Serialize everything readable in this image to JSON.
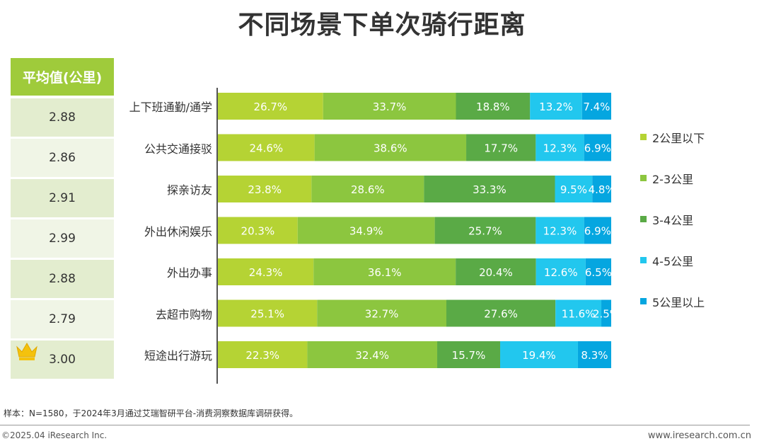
{
  "chart_data": {
    "type": "bar",
    "orientation": "horizontal",
    "stacked": true,
    "percent": true,
    "title": "不同场景下单次骑行距离",
    "categories": [
      "上下班通勤/通学",
      "公共交通接驳",
      "探亲访友",
      "外出休闲娱乐",
      "外出办事",
      "去超市购物",
      "短途出行游玩"
    ],
    "series": [
      {
        "name": "2公里以下",
        "color": "#b5d334",
        "values": [
          26.7,
          24.6,
          23.8,
          20.3,
          24.3,
          25.1,
          22.3
        ]
      },
      {
        "name": "2-3公里",
        "color": "#8cc63f",
        "values": [
          33.7,
          38.6,
          28.6,
          34.9,
          36.1,
          32.7,
          32.4
        ]
      },
      {
        "name": "3-4公里",
        "color": "#5aaa46",
        "values": [
          18.8,
          17.7,
          33.3,
          25.7,
          20.4,
          27.6,
          15.7
        ]
      },
      {
        "name": "4-5公里",
        "color": "#22c7ee",
        "values": [
          13.2,
          12.3,
          9.5,
          12.3,
          12.6,
          11.6,
          19.4
        ]
      },
      {
        "name": "5公里以上",
        "color": "#05a6e0",
        "values": [
          7.4,
          6.9,
          4.8,
          6.9,
          6.5,
          2.5,
          8.3
        ]
      }
    ],
    "value_labels": [
      [
        "26.7%",
        "33.7%",
        "18.8%",
        "13.2%",
        "7.4%"
      ],
      [
        "24.6%",
        "38.6%",
        "17.7%",
        "12.3%",
        "6.9%"
      ],
      [
        "23.8%",
        "28.6%",
        "33.3%",
        "9.5%",
        "4.8%"
      ],
      [
        "20.3%",
        "34.9%",
        "25.7%",
        "12.3%",
        "6.9%"
      ],
      [
        "24.3%",
        "36.1%",
        "20.4%",
        "12.6%",
        "6.5%"
      ],
      [
        "25.1%",
        "32.7%",
        "27.6%",
        "11.6%",
        "2.5%"
      ],
      [
        "22.3%",
        "32.4%",
        "15.7%",
        "19.4%",
        "8.3%"
      ]
    ],
    "xlim": [
      0,
      100
    ],
    "legend_position": "right"
  },
  "average_table": {
    "header": "平均值(公里)",
    "values": [
      "2.88",
      "2.86",
      "2.91",
      "2.99",
      "2.88",
      "2.79",
      "3.00"
    ],
    "highlight_index": 6,
    "highlight_icon": "crown-icon"
  },
  "footer": {
    "sample_note": "样本：N=1580，于2024年3月通过艾瑞智研平台-消费洞察数据库调研获得。",
    "copyright": "©2025.04 iResearch Inc.",
    "website": "www.iresearch.com.cn"
  },
  "colors": {
    "header_green": "#9fcb3b",
    "cell_dark": "#e3edcf",
    "cell_light": "#f0f5e6",
    "crown": "#f4c20d"
  }
}
